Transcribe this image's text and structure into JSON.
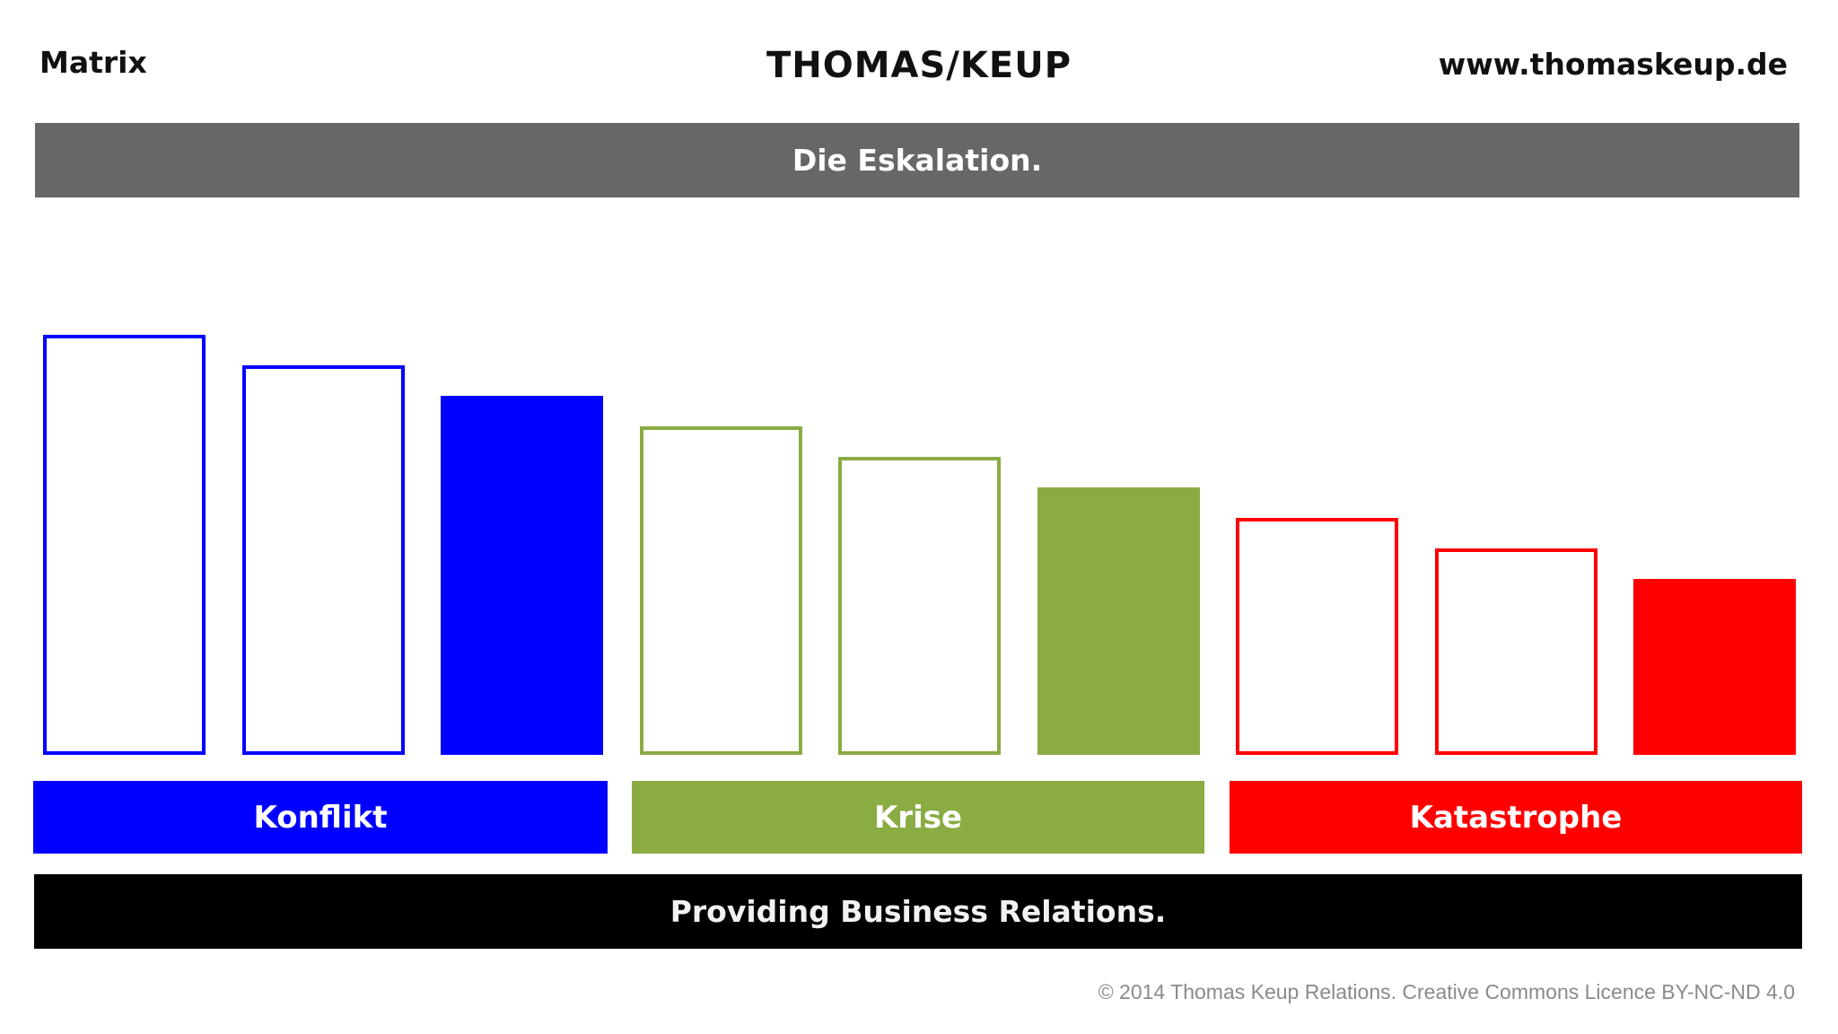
{
  "header": {
    "left": "Matrix",
    "center": "THOMAS/KEUP",
    "right": "www.thomaskeup.de"
  },
  "title": "Die Eskalation.",
  "groups": [
    {
      "label": "Konflikt",
      "color": "#0000ff"
    },
    {
      "label": "Krise",
      "color": "#8aac43"
    },
    {
      "label": "Katastrophe",
      "color": "#ff0000"
    }
  ],
  "stages": [
    {
      "group": 0,
      "level": 9,
      "style": "outline"
    },
    {
      "group": 0,
      "level": 8,
      "style": "outline"
    },
    {
      "group": 0,
      "level": 7,
      "style": "filled"
    },
    {
      "group": 1,
      "level": 6,
      "style": "outline"
    },
    {
      "group": 1,
      "level": 5,
      "style": "outline"
    },
    {
      "group": 1,
      "level": 4,
      "style": "filled"
    },
    {
      "group": 2,
      "level": 3,
      "style": "outline"
    },
    {
      "group": 2,
      "level": 2,
      "style": "outline"
    },
    {
      "group": 2,
      "level": 1,
      "style": "filled"
    }
  ],
  "footer": "Providing Business Relations.",
  "copyright": "© 2014 Thomas Keup Relations. Creative Commons Licence BY-NC-ND 4.0"
}
